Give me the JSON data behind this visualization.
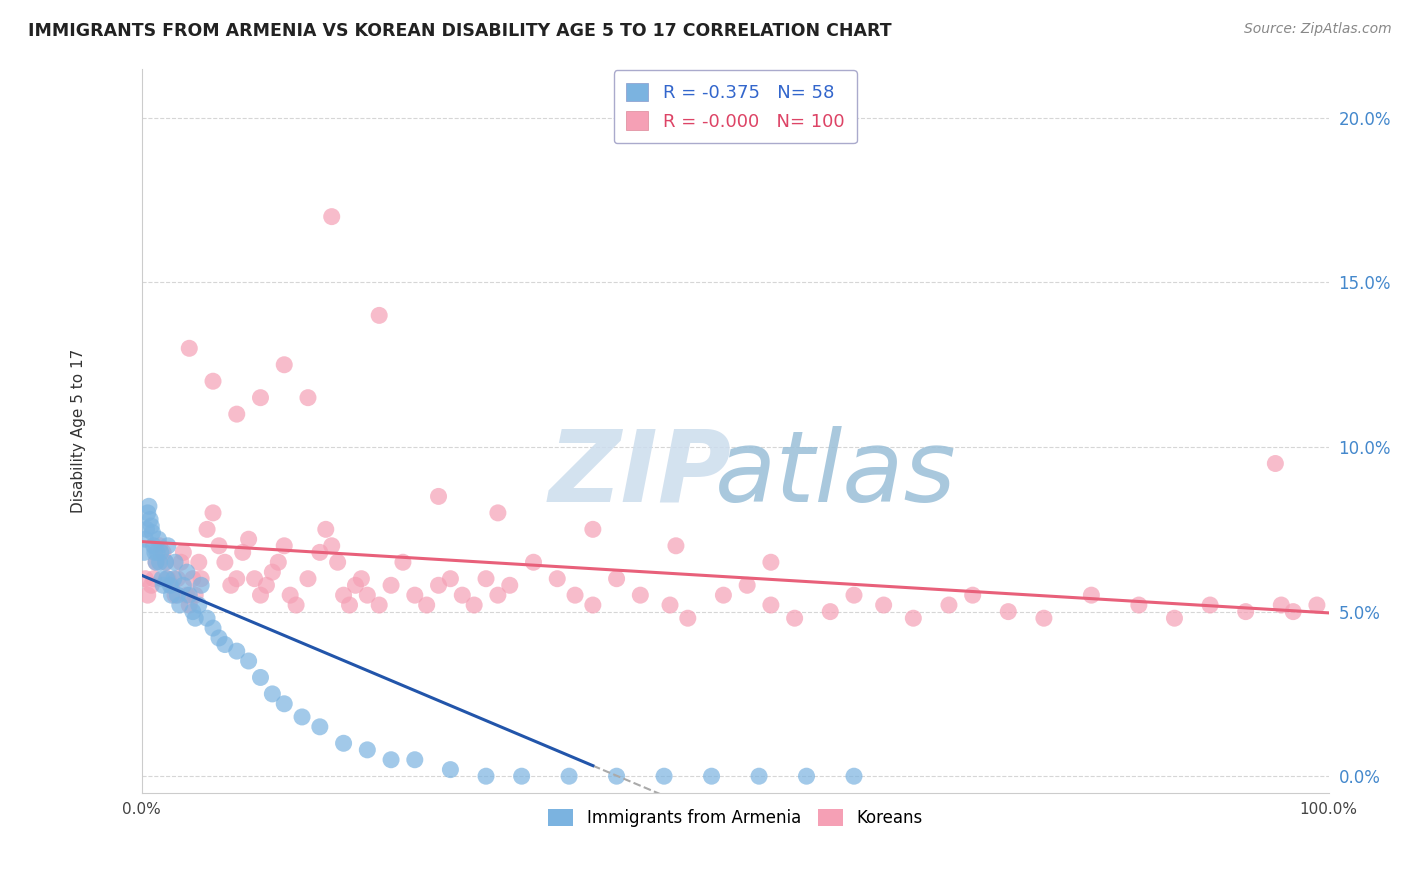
{
  "title": "IMMIGRANTS FROM ARMENIA VS KOREAN DISABILITY AGE 5 TO 17 CORRELATION CHART",
  "source": "Source: ZipAtlas.com",
  "ylabel": "Disability Age 5 to 17",
  "xlim": [
    0.0,
    1.0
  ],
  "ylim": [
    -0.005,
    0.215
  ],
  "yticks": [
    0.0,
    0.05,
    0.1,
    0.15,
    0.2
  ],
  "ytick_labels": [
    "0.0%",
    "5.0%",
    "10.0%",
    "15.0%",
    "20.0%"
  ],
  "R_armenia": -0.375,
  "N_armenia": 58,
  "R_korean": -0.0,
  "N_korean": 100,
  "background_color": "#ffffff",
  "grid_color": "#cccccc",
  "armenia_color": "#7bb3e0",
  "korean_color": "#f5a0b5",
  "armenia_trend_color": "#2255aa",
  "korean_trend_color": "#e8607a",
  "watermark_zip_color": "#c8dff0",
  "watermark_atlas_color": "#a0c8e8",
  "armenia_scatter_x": [
    0.002,
    0.003,
    0.004,
    0.005,
    0.006,
    0.007,
    0.008,
    0.009,
    0.01,
    0.011,
    0.012,
    0.013,
    0.014,
    0.015,
    0.016,
    0.017,
    0.018,
    0.02,
    0.021,
    0.022,
    0.024,
    0.025,
    0.027,
    0.028,
    0.03,
    0.032,
    0.035,
    0.038,
    0.04,
    0.043,
    0.045,
    0.048,
    0.05,
    0.055,
    0.06,
    0.065,
    0.07,
    0.08,
    0.09,
    0.1,
    0.11,
    0.12,
    0.135,
    0.15,
    0.17,
    0.19,
    0.21,
    0.23,
    0.26,
    0.29,
    0.32,
    0.36,
    0.4,
    0.44,
    0.48,
    0.52,
    0.56,
    0.6
  ],
  "armenia_scatter_y": [
    0.068,
    0.072,
    0.075,
    0.08,
    0.082,
    0.078,
    0.076,
    0.074,
    0.07,
    0.068,
    0.065,
    0.068,
    0.072,
    0.065,
    0.068,
    0.06,
    0.058,
    0.065,
    0.06,
    0.07,
    0.058,
    0.055,
    0.06,
    0.065,
    0.055,
    0.052,
    0.058,
    0.062,
    0.055,
    0.05,
    0.048,
    0.052,
    0.058,
    0.048,
    0.045,
    0.042,
    0.04,
    0.038,
    0.035,
    0.03,
    0.025,
    0.022,
    0.018,
    0.015,
    0.01,
    0.008,
    0.005,
    0.005,
    0.002,
    0.0,
    0.0,
    0.0,
    0.0,
    0.0,
    0.0,
    0.0,
    0.0,
    0.0
  ],
  "korean_scatter_x": [
    0.003,
    0.005,
    0.008,
    0.01,
    0.012,
    0.015,
    0.018,
    0.02,
    0.022,
    0.025,
    0.028,
    0.03,
    0.033,
    0.035,
    0.038,
    0.04,
    0.043,
    0.045,
    0.048,
    0.05,
    0.055,
    0.06,
    0.065,
    0.07,
    0.075,
    0.08,
    0.085,
    0.09,
    0.095,
    0.1,
    0.105,
    0.11,
    0.115,
    0.12,
    0.125,
    0.13,
    0.14,
    0.15,
    0.155,
    0.16,
    0.165,
    0.17,
    0.175,
    0.18,
    0.185,
    0.19,
    0.2,
    0.21,
    0.22,
    0.23,
    0.24,
    0.25,
    0.26,
    0.27,
    0.28,
    0.29,
    0.3,
    0.31,
    0.33,
    0.35,
    0.365,
    0.38,
    0.4,
    0.42,
    0.445,
    0.46,
    0.49,
    0.51,
    0.53,
    0.55,
    0.58,
    0.6,
    0.625,
    0.65,
    0.68,
    0.7,
    0.73,
    0.76,
    0.8,
    0.84,
    0.87,
    0.9,
    0.93,
    0.955,
    0.97,
    0.99,
    0.04,
    0.06,
    0.08,
    0.1,
    0.12,
    0.14,
    0.16,
    0.2,
    0.25,
    0.3,
    0.38,
    0.45,
    0.53,
    0.96
  ],
  "korean_scatter_y": [
    0.06,
    0.055,
    0.058,
    0.06,
    0.065,
    0.07,
    0.068,
    0.065,
    0.06,
    0.058,
    0.055,
    0.06,
    0.065,
    0.068,
    0.055,
    0.052,
    0.06,
    0.055,
    0.065,
    0.06,
    0.075,
    0.08,
    0.07,
    0.065,
    0.058,
    0.06,
    0.068,
    0.072,
    0.06,
    0.055,
    0.058,
    0.062,
    0.065,
    0.07,
    0.055,
    0.052,
    0.06,
    0.068,
    0.075,
    0.07,
    0.065,
    0.055,
    0.052,
    0.058,
    0.06,
    0.055,
    0.052,
    0.058,
    0.065,
    0.055,
    0.052,
    0.058,
    0.06,
    0.055,
    0.052,
    0.06,
    0.055,
    0.058,
    0.065,
    0.06,
    0.055,
    0.052,
    0.06,
    0.055,
    0.052,
    0.048,
    0.055,
    0.058,
    0.052,
    0.048,
    0.05,
    0.055,
    0.052,
    0.048,
    0.052,
    0.055,
    0.05,
    0.048,
    0.055,
    0.052,
    0.048,
    0.052,
    0.05,
    0.095,
    0.05,
    0.052,
    0.13,
    0.12,
    0.11,
    0.115,
    0.125,
    0.115,
    0.17,
    0.14,
    0.085,
    0.08,
    0.075,
    0.07,
    0.065,
    0.052
  ]
}
